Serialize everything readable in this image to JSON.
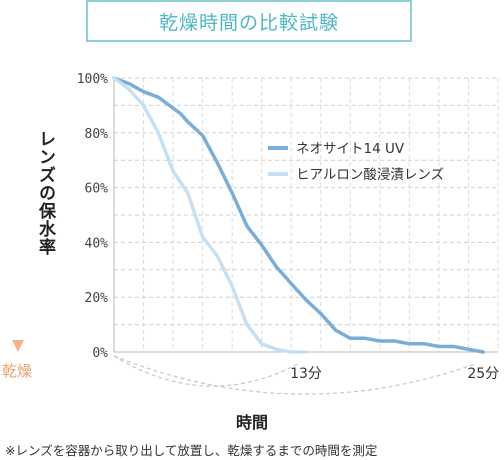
{
  "chart_data": {
    "type": "line",
    "title": "乾燥時間の比較試験",
    "ylabel": "レンズの保水率",
    "ylabel_arrow_end": "乾燥",
    "xlabel": "時間",
    "note": "※レンズを容器から取り出して放置し、乾燥するまでの時間を測定",
    "ylim": [
      0,
      100
    ],
    "xlim": [
      0,
      26
    ],
    "yticks": [
      "100%",
      "80%",
      "60%",
      "40%",
      "20%",
      "0%"
    ],
    "ytick_values": [
      100,
      80,
      60,
      40,
      20,
      0
    ],
    "xticks": [
      {
        "value": 13,
        "label": "13分"
      },
      {
        "value": 25,
        "label": "25分"
      }
    ],
    "grid": true,
    "legend_position": "right",
    "colors": {
      "series1": "#7aaed6",
      "series2": "#c5e0f2",
      "title": "#4fb8c6",
      "title_border": "#8fd0d8",
      "y_arrow_top": "#8fc4e6",
      "y_arrow_bottom": "#f4b48a",
      "dry_label": "#f0a070"
    },
    "series": [
      {
        "name": "ネオサイト14 UV",
        "x": [
          0,
          1,
          2,
          3,
          4,
          4.5,
          5,
          6,
          7,
          8,
          9,
          10,
          11,
          12,
          13,
          14,
          15,
          16,
          17,
          18,
          19,
          20,
          21,
          22,
          23,
          24,
          25
        ],
        "y": [
          100,
          98,
          95,
          93,
          89,
          87,
          84,
          79,
          69,
          58,
          46,
          39,
          31,
          25,
          19,
          14,
          8,
          5,
          5,
          4,
          4,
          3,
          3,
          2,
          2,
          1,
          0
        ]
      },
      {
        "name": "ヒアルロン酸浸漬レンズ",
        "x": [
          0,
          1,
          2,
          3,
          4,
          5,
          6,
          7,
          8,
          9,
          10,
          11,
          12,
          13
        ],
        "y": [
          100,
          96,
          90,
          80,
          66,
          58,
          42,
          35,
          24,
          10,
          3,
          1,
          0,
          0
        ]
      }
    ]
  }
}
